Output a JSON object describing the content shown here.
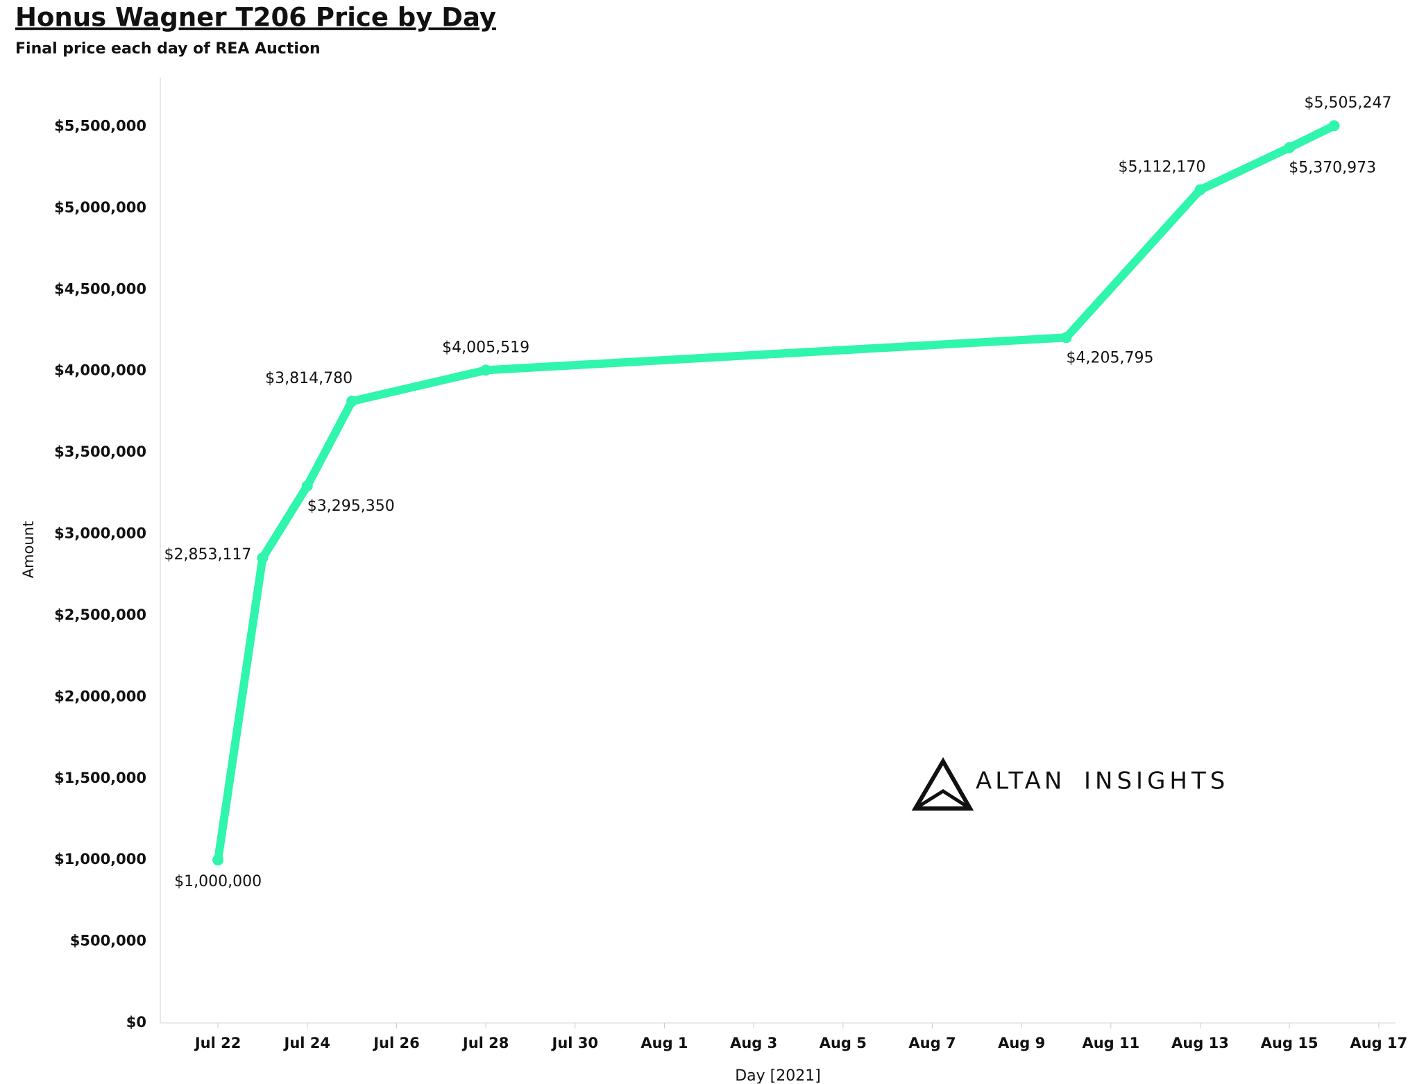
{
  "chart_data": {
    "type": "line",
    "title": "Honus Wagner T206 Price by Day",
    "subtitle": "Final price each day of REA Auction",
    "x_label": "Day [2021]",
    "y_label": "Amount",
    "x": [
      "2021-07-22",
      "2021-07-23",
      "2021-07-24",
      "2021-07-25",
      "2021-07-28",
      "2021-08-10",
      "2021-08-13",
      "2021-08-15",
      "2021-08-16"
    ],
    "series": [
      {
        "name": "Amount",
        "color": "#30f5ad",
        "values": [
          1000000,
          2853117,
          3295350,
          3814780,
          4005519,
          4205795,
          5112170,
          5370973,
          5505247
        ],
        "value_labels": [
          "$1,000,000",
          "$2,853,117",
          "$3,295,350",
          "$3,814,780",
          "$4,005,519",
          "$4,205,795",
          "$5,112,170",
          "$5,370,973",
          "$5,505,247"
        ]
      }
    ],
    "xlim": [
      "2021-07-20T17:00",
      "2021-08-17T09:00"
    ],
    "xticks": [
      {
        "value": "2021-07-22",
        "label": "Jul 22"
      },
      {
        "value": "2021-07-24",
        "label": "Jul 24"
      },
      {
        "value": "2021-07-26",
        "label": "Jul 26"
      },
      {
        "value": "2021-07-28",
        "label": "Jul 28"
      },
      {
        "value": "2021-07-30",
        "label": "Jul 30"
      },
      {
        "value": "2021-08-01",
        "label": "Aug 1"
      },
      {
        "value": "2021-08-03",
        "label": "Aug 3"
      },
      {
        "value": "2021-08-05",
        "label": "Aug 5"
      },
      {
        "value": "2021-08-07",
        "label": "Aug 7"
      },
      {
        "value": "2021-08-09",
        "label": "Aug 9"
      },
      {
        "value": "2021-08-11",
        "label": "Aug 11"
      },
      {
        "value": "2021-08-13",
        "label": "Aug 13"
      },
      {
        "value": "2021-08-15",
        "label": "Aug 15"
      },
      {
        "value": "2021-08-17",
        "label": "Aug 17"
      }
    ],
    "ylim": [
      0,
      5800000
    ],
    "yticks": [
      {
        "value": 0,
        "label": "$0"
      },
      {
        "value": 500000,
        "label": "$500,000"
      },
      {
        "value": 1000000,
        "label": "$1,000,000"
      },
      {
        "value": 1500000,
        "label": "$1,500,000"
      },
      {
        "value": 2000000,
        "label": "$2,000,000"
      },
      {
        "value": 2500000,
        "label": "$2,500,000"
      },
      {
        "value": 3000000,
        "label": "$3,000,000"
      },
      {
        "value": 3500000,
        "label": "$3,500,000"
      },
      {
        "value": 4000000,
        "label": "$4,000,000"
      },
      {
        "value": 4500000,
        "label": "$4,500,000"
      },
      {
        "value": 5000000,
        "label": "$5,000,000"
      },
      {
        "value": 5500000,
        "label": "$5,500,000"
      }
    ],
    "grid": false,
    "watermark": {
      "brand": "ALTAN",
      "suffix": "INSIGHTS"
    }
  }
}
